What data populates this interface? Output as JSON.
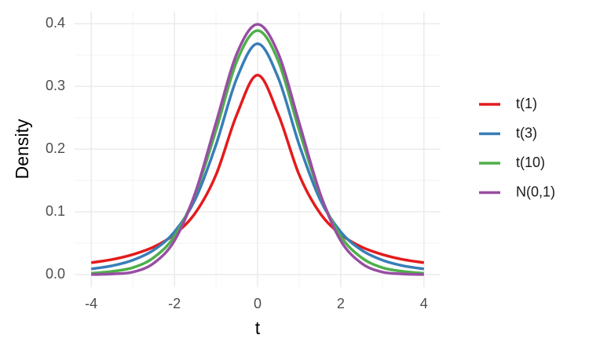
{
  "chart_data": {
    "type": "line",
    "x_label": "t",
    "y_label": "Density",
    "x": [
      -4,
      -3.5,
      -3,
      -2.5,
      -2,
      -1.5,
      -1,
      -0.5,
      0,
      0.5,
      1,
      1.5,
      2,
      2.5,
      3,
      3.5,
      4
    ],
    "series": [
      {
        "name": "t(1)",
        "color": "#e41a1c",
        "values": [
          0.019,
          0.024,
          0.032,
          0.044,
          0.064,
          0.098,
          0.159,
          0.255,
          0.318,
          0.255,
          0.159,
          0.098,
          0.064,
          0.044,
          0.032,
          0.024,
          0.019
        ]
      },
      {
        "name": "t(3)",
        "color": "#377eb8",
        "values": [
          0.009,
          0.014,
          0.023,
          0.039,
          0.068,
          0.12,
          0.207,
          0.313,
          0.368,
          0.313,
          0.207,
          0.12,
          0.068,
          0.039,
          0.023,
          0.014,
          0.009
        ]
      },
      {
        "name": "t(10)",
        "color": "#4daf4a",
        "values": [
          0.002,
          0.005,
          0.011,
          0.027,
          0.061,
          0.128,
          0.23,
          0.34,
          0.389,
          0.34,
          0.23,
          0.128,
          0.061,
          0.027,
          0.011,
          0.005,
          0.002
        ]
      },
      {
        "name": "N(0,1)",
        "color": "#984ea3",
        "values": [
          0.0001,
          0.001,
          0.004,
          0.018,
          0.054,
          0.13,
          0.242,
          0.352,
          0.399,
          0.352,
          0.242,
          0.13,
          0.054,
          0.018,
          0.004,
          0.001,
          0.0001
        ]
      }
    ],
    "xlim": [
      -4.4,
      4.4
    ],
    "xticks": [
      -4,
      -2,
      0,
      2,
      4
    ],
    "ylim": [
      -0.02,
      0.419
    ],
    "yticks": [
      {
        "value": 0,
        "label": "0.0"
      },
      0.1,
      0.2,
      0.3,
      0.4
    ],
    "grid": true,
    "minor_grid": true,
    "legend": "right",
    "smooth": true
  }
}
